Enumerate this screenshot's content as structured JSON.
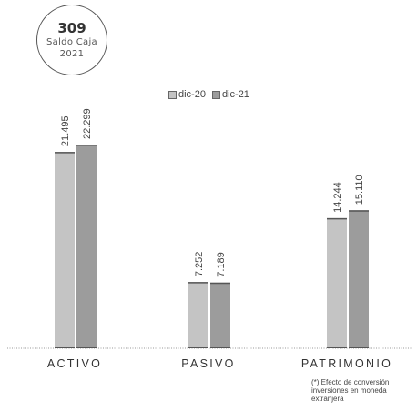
{
  "badge": {
    "value": "309",
    "label_line1": "Saldo Caja",
    "label_line2": "2021"
  },
  "footnote": "(*) Efecto de conversión inversiones en moneda extranjera",
  "colors": {
    "series1": "#c4c4c4",
    "series2": "#9c9c9c",
    "bar_top": "#555555",
    "baseline": "#999999"
  },
  "chart_data": {
    "type": "bar",
    "categories": [
      "ACTIVO",
      "PASIVO",
      "PATRIMONIO"
    ],
    "series": [
      {
        "name": "dic-20",
        "values": [
          21495,
          7252,
          14244
        ],
        "labels": [
          "21.495",
          "7.252",
          "14.244"
        ]
      },
      {
        "name": "dic-21",
        "values": [
          22299,
          7189,
          15110
        ],
        "labels": [
          "22.299",
          "7.189",
          "15.110"
        ]
      }
    ],
    "legend": "top-center",
    "grid": false
  }
}
